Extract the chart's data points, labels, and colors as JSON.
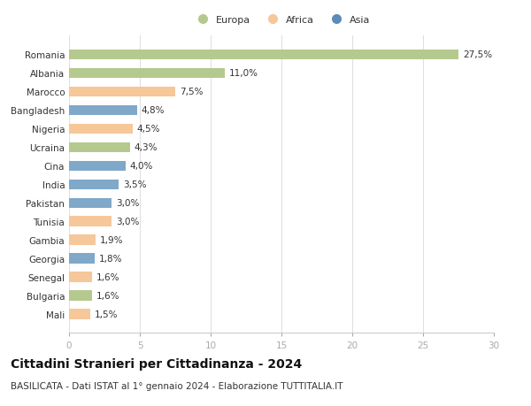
{
  "categories": [
    "Mali",
    "Bulgaria",
    "Senegal",
    "Georgia",
    "Gambia",
    "Tunisia",
    "Pakistan",
    "India",
    "Cina",
    "Ucraina",
    "Nigeria",
    "Bangladesh",
    "Marocco",
    "Albania",
    "Romania"
  ],
  "values": [
    1.5,
    1.6,
    1.6,
    1.8,
    1.9,
    3.0,
    3.0,
    3.5,
    4.0,
    4.3,
    4.5,
    4.8,
    7.5,
    11.0,
    27.5
  ],
  "labels": [
    "1,5%",
    "1,6%",
    "1,6%",
    "1,8%",
    "1,9%",
    "3,0%",
    "3,0%",
    "3,5%",
    "4,0%",
    "4,3%",
    "4,5%",
    "4,8%",
    "7,5%",
    "11,0%",
    "27,5%"
  ],
  "colors": [
    "#f5c799",
    "#b5c98e",
    "#f5c799",
    "#7fa8c9",
    "#f5c799",
    "#f5c799",
    "#7fa8c9",
    "#7fa8c9",
    "#7fa8c9",
    "#b5c98e",
    "#f5c799",
    "#7fa8c9",
    "#f5c799",
    "#b5c98e",
    "#b5c98e"
  ],
  "legend_labels": [
    "Europa",
    "Africa",
    "Asia"
  ],
  "legend_colors": [
    "#b5c98e",
    "#f5c799",
    "#5b8db8"
  ],
  "title": "Cittadini Stranieri per Cittadinanza - 2024",
  "subtitle": "BASILICATA - Dati ISTAT al 1° gennaio 2024 - Elaborazione TUTTITALIA.IT",
  "xlim": [
    0,
    30
  ],
  "xticks": [
    0,
    5,
    10,
    15,
    20,
    25,
    30
  ],
  "bar_height": 0.55,
  "background_color": "#ffffff",
  "grid_color": "#e0e0e0",
  "text_color": "#333333",
  "label_fontsize": 7.5,
  "tick_fontsize": 7.5,
  "title_fontsize": 10,
  "subtitle_fontsize": 7.5
}
